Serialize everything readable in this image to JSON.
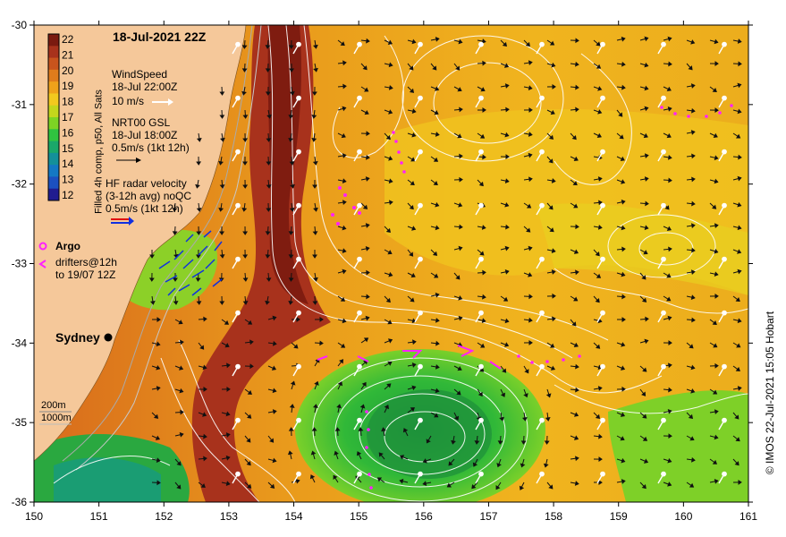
{
  "map": {
    "title": "18-Jul-2021 22Z",
    "x_ticks": [
      150,
      151,
      152,
      153,
      154,
      155,
      156,
      157,
      158,
      159,
      160,
      161
    ],
    "y_ticks": [
      -30,
      -31,
      -32,
      -33,
      -34,
      -35,
      -36
    ],
    "place_label": "Sydney",
    "credit": "© IMOS 22-Jul-2021 15:05 Hobart"
  },
  "colorbar": {
    "title": "Filled 4h comp, p50, All Sats",
    "ticks": [
      "22",
      "21",
      "20",
      "19",
      "18",
      "17",
      "16",
      "15",
      "14",
      "13",
      "12"
    ],
    "colors": [
      "#7a1a10",
      "#a8321c",
      "#c8541d",
      "#e07c1c",
      "#efa21a",
      "#f2c91e",
      "#c3d61c",
      "#7dd424",
      "#30c440",
      "#1aa86a",
      "#14909a",
      "#1478c4",
      "#1c50c0",
      "#201c90"
    ]
  },
  "legend": {
    "wind_title": "WindSpeed",
    "wind_time": "18-Jul 22:00Z",
    "wind_scale": "10 m/s",
    "gsl_title": "NRT00 GSL",
    "gsl_time": "18-Jul 18:00Z",
    "gsl_scale": "0.5m/s (1kt 12h)",
    "hf_title": "HF radar velocity",
    "hf_sub": "(3-12h avg) noQC",
    "hf_scale": "0.5m/s (1kt 12h)",
    "argo_label": "Argo",
    "drifters_label": "drifters@12h",
    "drifters_sub": "to 19/07 12Z",
    "depth_200": "200m",
    "depth_1000": "1000m"
  }
}
